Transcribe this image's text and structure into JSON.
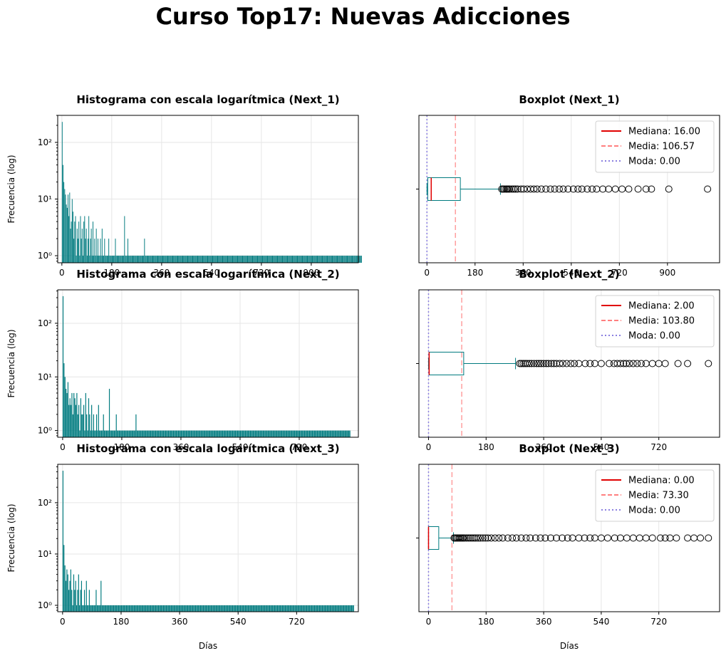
{
  "title": "Curso Top17: Nuevas Adicciones",
  "chart_data": [
    {
      "type": "histogram",
      "title": "Histograma con escala logarítmica (Next_1)",
      "xlabel": "",
      "ylabel": "Frecuencia (log)",
      "yscale": "log",
      "ylim": [
        0.75,
        300
      ],
      "xlim": [
        -15,
        1070
      ],
      "xticks": [
        0,
        180,
        360,
        540,
        720,
        900
      ],
      "xtick_labels": [
        "0",
        "180",
        "360",
        "540",
        "720",
        "900"
      ],
      "yticks": [
        1,
        10,
        100
      ],
      "ytick_labels": [
        "10⁰",
        "10¹",
        "10²"
      ],
      "grid": true,
      "color": "#007b7f",
      "bin_width": 3,
      "x_start": 0,
      "counts": [
        230,
        40,
        20,
        15,
        12,
        8,
        7,
        12,
        5,
        13,
        3,
        4,
        10,
        6,
        2,
        4,
        5,
        1,
        3,
        2,
        4,
        1,
        5,
        2,
        3,
        1,
        4,
        5,
        2,
        3,
        1,
        2,
        5,
        1,
        2,
        3,
        1,
        4,
        1,
        2,
        1,
        3,
        1,
        2,
        1,
        1,
        2,
        1,
        3,
        1,
        1,
        2,
        1,
        1,
        1,
        1,
        2,
        1,
        1,
        1,
        1,
        1,
        1,
        1,
        2,
        1,
        1,
        1,
        1,
        1,
        1,
        1,
        1,
        1,
        1,
        5,
        1,
        1,
        1,
        2,
        1,
        1,
        1,
        1,
        1,
        1,
        1,
        1,
        1,
        1,
        1,
        1,
        1,
        1,
        1,
        1,
        1,
        1,
        1,
        2,
        1,
        1,
        1,
        1,
        1,
        1,
        1,
        1,
        1,
        1,
        1,
        1,
        1,
        1,
        1,
        1,
        1,
        1,
        1,
        1,
        1,
        1,
        1,
        1,
        1,
        1,
        1,
        1,
        1,
        1,
        1,
        1,
        1,
        1,
        1,
        1,
        1,
        1,
        1,
        1,
        1,
        1,
        1,
        1,
        1,
        1,
        1,
        1,
        1,
        1,
        1,
        1,
        1,
        1,
        1,
        1,
        1,
        1,
        1,
        1,
        1,
        1,
        1,
        1,
        1,
        1,
        1,
        1,
        1,
        1,
        1,
        1,
        1,
        1,
        1,
        1,
        1,
        1,
        1,
        1,
        1,
        1,
        1,
        1,
        1,
        1,
        1,
        1,
        1,
        1,
        1,
        1,
        1,
        1,
        1,
        1,
        1,
        1,
        1,
        1,
        1,
        1,
        1,
        1,
        1,
        1,
        1,
        1,
        1,
        1,
        1,
        1,
        1,
        1,
        1,
        1,
        1,
        1,
        1,
        1,
        1,
        1,
        1,
        1,
        1,
        1,
        1,
        1,
        1,
        1,
        1,
        1,
        1,
        1,
        1,
        1,
        1,
        1,
        1,
        1,
        1,
        1,
        1,
        1,
        1,
        1,
        1,
        1,
        1,
        1,
        1,
        1,
        1,
        1,
        1,
        1,
        1,
        1,
        1,
        1,
        1,
        1,
        1,
        1,
        1,
        1,
        1,
        1,
        1,
        1,
        1,
        1,
        1,
        1,
        1,
        1,
        1,
        1,
        1,
        1,
        1,
        1,
        1,
        1,
        1,
        1,
        1,
        1,
        1,
        1,
        1,
        1,
        1,
        1,
        1,
        1,
        1,
        1,
        1,
        1,
        1,
        1,
        1,
        1,
        1,
        1,
        1,
        1,
        1,
        1,
        1,
        1,
        1,
        1,
        1,
        1,
        1,
        1,
        1,
        1,
        1,
        1,
        1,
        1,
        1,
        1,
        1,
        1,
        1,
        1,
        1,
        1,
        1,
        1,
        1,
        1,
        1,
        1,
        1,
        1,
        1,
        1,
        1,
        1,
        1,
        1,
        1,
        1,
        1,
        1,
        1,
        1,
        1,
        1,
        1,
        1,
        1,
        1,
        1,
        1,
        1
      ]
    },
    {
      "type": "boxplot",
      "title": "Boxplot (Next_1)",
      "xlabel": "",
      "xlim": [
        -30,
        1095
      ],
      "xticks": [
        0,
        180,
        360,
        540,
        720,
        900
      ],
      "xtick_labels": [
        "0",
        "180",
        "360",
        "540",
        "720",
        "900"
      ],
      "grid": true,
      "box": {
        "whislo": 0,
        "q1": 3,
        "median": 16,
        "q3": 125,
        "whishi": 275
      },
      "outliers": [
        280,
        285,
        290,
        296,
        300,
        305,
        310,
        318,
        325,
        332,
        340,
        352,
        362,
        375,
        388,
        400,
        412,
        428,
        445,
        462,
        478,
        495,
        510,
        528,
        548,
        565,
        580,
        600,
        618,
        635,
        658,
        680,
        705,
        730,
        755,
        790,
        820,
        840,
        905,
        1050
      ],
      "mean": 106.57,
      "mode": 0,
      "legend": [
        "Mediana: 16.00",
        "Media: 106.57",
        "Moda: 0.00"
      ],
      "legend_position": "upper right",
      "colors": {
        "box": "#007b7f",
        "median": "#e00000",
        "mean": "#ff7f7f",
        "mode": "#8a7fe0"
      }
    },
    {
      "type": "histogram",
      "title": "Histograma con escala logarítmica (Next_2)",
      "xlabel": "",
      "ylabel": "Frecuencia (log)",
      "yscale": "log",
      "ylim": [
        0.75,
        420
      ],
      "xlim": [
        -15,
        900
      ],
      "xticks": [
        0,
        180,
        360,
        540,
        720
      ],
      "xtick_labels": [
        "0",
        "180",
        "360",
        "540",
        "720"
      ],
      "yticks": [
        1,
        10,
        100
      ],
      "ytick_labels": [
        "10⁰",
        "10¹",
        "10²"
      ],
      "grid": true,
      "color": "#007b7f",
      "bin_width": 3,
      "x_start": 0,
      "counts": [
        320,
        18,
        10,
        6,
        5,
        8,
        3,
        4,
        3,
        5,
        2,
        5,
        4,
        3,
        5,
        2,
        3,
        1,
        4,
        2,
        2,
        3,
        1,
        5,
        2,
        1,
        4,
        2,
        1,
        3,
        1,
        2,
        1,
        1,
        2,
        1,
        3,
        1,
        1,
        1,
        1,
        2,
        1,
        1,
        1,
        1,
        1,
        6,
        1,
        1,
        1,
        1,
        1,
        1,
        2,
        1,
        1,
        1,
        1,
        1,
        1,
        1,
        1,
        1,
        1,
        1,
        1,
        1,
        1,
        1,
        1,
        1,
        1,
        1,
        2,
        1,
        1,
        1,
        1,
        1,
        1,
        1,
        1,
        1,
        1,
        1,
        1,
        1,
        1,
        1,
        1,
        1,
        1,
        1,
        1,
        1,
        1,
        1,
        1,
        1,
        1,
        1,
        1,
        1,
        1,
        1,
        1,
        1,
        1,
        1,
        1,
        1,
        1,
        1,
        1,
        1,
        1,
        1,
        1,
        1,
        1,
        1,
        1,
        1,
        1,
        1,
        1,
        1,
        1,
        1,
        1,
        1,
        1,
        1,
        1,
        1,
        1,
        1,
        1,
        1,
        1,
        1,
        1,
        1,
        1,
        1,
        1,
        1,
        1,
        1,
        1,
        1,
        1,
        1,
        1,
        1,
        1,
        1,
        1,
        1,
        1,
        1,
        1,
        1,
        1,
        1,
        1,
        1,
        1,
        1,
        1,
        1,
        1,
        1,
        1,
        1,
        1,
        1,
        1,
        1,
        1,
        1,
        1,
        1,
        1,
        1,
        1,
        1,
        1,
        1,
        1,
        1,
        1,
        1,
        1,
        1,
        1,
        1,
        1,
        1,
        1,
        1,
        1,
        1,
        1,
        1,
        1,
        1,
        1,
        1,
        1,
        1,
        1,
        1,
        1,
        1,
        1,
        1,
        1,
        1,
        1,
        1,
        1,
        1,
        1,
        1,
        1,
        1,
        1,
        1,
        1,
        1,
        1,
        1,
        1,
        1,
        1,
        1,
        1,
        1,
        1,
        1,
        1,
        1,
        1,
        1,
        1,
        1,
        1,
        1,
        1,
        1,
        1,
        1,
        1,
        1,
        1,
        1,
        1,
        1,
        1,
        1,
        1,
        1,
        1,
        1,
        1,
        1,
        1,
        1,
        1,
        1,
        1,
        1,
        1,
        1,
        1,
        1,
        1,
        1,
        1,
        1,
        1,
        1,
        1,
        1,
        1,
        1,
        1,
        1,
        1,
        1
      ]
    },
    {
      "type": "boxplot",
      "title": "Boxplot (Next_2)",
      "xlabel": "",
      "xlim": [
        -30,
        910
      ],
      "xticks": [
        0,
        180,
        360,
        540,
        720
      ],
      "xtick_labels": [
        "0",
        "180",
        "360",
        "540",
        "720"
      ],
      "grid": true,
      "box": {
        "whislo": 0,
        "q1": 2,
        "median": 2,
        "q3": 110,
        "whishi": 272
      },
      "outliers": [
        285,
        290,
        296,
        302,
        308,
        315,
        322,
        330,
        338,
        345,
        352,
        360,
        368,
        375,
        384,
        392,
        400,
        410,
        420,
        432,
        445,
        456,
        470,
        490,
        505,
        520,
        540,
        565,
        580,
        590,
        600,
        610,
        618,
        628,
        640,
        652,
        665,
        680,
        700,
        720,
        740,
        780,
        810,
        875
      ],
      "mean": 103.8,
      "mode": 0,
      "legend": [
        "Mediana: 2.00",
        "Media: 103.80",
        "Moda: 0.00"
      ],
      "legend_position": "upper right",
      "colors": {
        "box": "#007b7f",
        "median": "#e00000",
        "mean": "#ff7f7f",
        "mode": "#8a7fe0"
      }
    },
    {
      "type": "histogram",
      "title": "Histograma con escala logarítmica (Next_3)",
      "xlabel": "Días",
      "ylabel": "Frecuencia (log)",
      "yscale": "log",
      "ylim": [
        0.75,
        560
      ],
      "xlim": [
        -15,
        910
      ],
      "xticks": [
        0,
        180,
        360,
        540,
        720
      ],
      "xtick_labels": [
        "0",
        "180",
        "360",
        "540",
        "720"
      ],
      "yticks": [
        1,
        10,
        100
      ],
      "ytick_labels": [
        "10⁰",
        "10¹",
        "10²"
      ],
      "grid": true,
      "color": "#007b7f",
      "bin_width": 3,
      "x_start": 0,
      "counts": [
        420,
        15,
        6,
        3,
        5,
        4,
        2,
        3,
        5,
        2,
        1,
        4,
        2,
        3,
        1,
        2,
        4,
        1,
        2,
        3,
        1,
        1,
        2,
        1,
        3,
        1,
        1,
        2,
        1,
        1,
        1,
        1,
        1,
        1,
        2,
        1,
        1,
        1,
        1,
        3,
        1,
        1,
        1,
        1,
        1,
        1,
        1,
        1,
        1,
        1,
        1,
        1,
        1,
        1,
        1,
        1,
        1,
        1,
        1,
        1,
        1,
        1,
        1,
        1,
        1,
        1,
        1,
        1,
        1,
        1,
        1,
        1,
        1,
        1,
        1,
        1,
        1,
        1,
        1,
        1,
        1,
        1,
        1,
        1,
        1,
        1,
        1,
        1,
        1,
        1,
        1,
        1,
        1,
        1,
        1,
        1,
        1,
        1,
        1,
        1,
        1,
        1,
        1,
        1,
        1,
        1,
        1,
        1,
        1,
        1,
        1,
        1,
        1,
        1,
        1,
        1,
        1,
        1,
        1,
        1,
        1,
        1,
        1,
        1,
        1,
        1,
        1,
        1,
        1,
        1,
        1,
        1,
        1,
        1,
        1,
        1,
        1,
        1,
        1,
        1,
        1,
        1,
        1,
        1,
        1,
        1,
        1,
        1,
        1,
        1,
        1,
        1,
        1,
        1,
        1,
        1,
        1,
        1,
        1,
        1,
        1,
        1,
        1,
        1,
        1,
        1,
        1,
        1,
        1,
        1,
        1,
        1,
        1,
        1,
        1,
        1,
        1,
        1,
        1,
        1,
        1,
        1,
        1,
        1,
        1,
        1,
        1,
        1,
        1,
        1,
        1,
        1,
        1,
        1,
        1,
        1,
        1,
        1,
        1,
        1,
        1,
        1,
        1,
        1,
        1,
        1,
        1,
        1,
        1,
        1,
        1,
        1,
        1,
        1,
        1,
        1,
        1,
        1,
        1,
        1,
        1,
        1,
        1,
        1,
        1,
        1,
        1,
        1,
        1,
        1,
        1,
        1,
        1,
        1,
        1,
        1,
        1,
        1,
        1,
        1,
        1,
        1,
        1,
        1,
        1,
        1,
        1,
        1,
        1,
        1,
        1,
        1,
        1,
        1,
        1,
        1,
        1,
        1,
        1,
        1,
        1,
        1,
        1,
        1,
        1,
        1,
        1,
        1,
        1,
        1,
        1,
        1,
        1,
        1,
        1,
        1,
        1,
        1,
        1,
        1,
        1,
        1,
        1,
        1,
        1,
        1,
        1,
        1,
        1,
        1,
        1,
        1,
        1,
        1,
        1,
        1,
        1,
        1,
        1
      ]
    },
    {
      "type": "boxplot",
      "title": "Boxplot (Next_3)",
      "xlabel": "Días",
      "xlim": [
        -30,
        910
      ],
      "xticks": [
        0,
        180,
        360,
        540,
        720
      ],
      "xtick_labels": [
        "0",
        "180",
        "360",
        "540",
        "720"
      ],
      "grid": true,
      "box": {
        "whislo": 0,
        "q1": 0,
        "median": 0,
        "q3": 32,
        "whishi": 78
      },
      "outliers": [
        80,
        84,
        88,
        92,
        96,
        100,
        104,
        108,
        112,
        118,
        124,
        130,
        136,
        142,
        148,
        155,
        162,
        170,
        178,
        186,
        196,
        208,
        220,
        232,
        248,
        262,
        275,
        290,
        305,
        318,
        335,
        350,
        365,
        382,
        400,
        418,
        435,
        450,
        470,
        488,
        505,
        520,
        540,
        560,
        582,
        600,
        620,
        640,
        660,
        680,
        700,
        725,
        740,
        755,
        775,
        810,
        830,
        850,
        875
      ],
      "mean": 73.3,
      "mode": 0,
      "legend": [
        "Mediana: 0.00",
        "Media: 73.30",
        "Moda: 0.00"
      ],
      "legend_position": "upper right",
      "colors": {
        "box": "#007b7f",
        "median": "#e00000",
        "mean": "#ff7f7f",
        "mode": "#8a7fe0"
      }
    }
  ]
}
